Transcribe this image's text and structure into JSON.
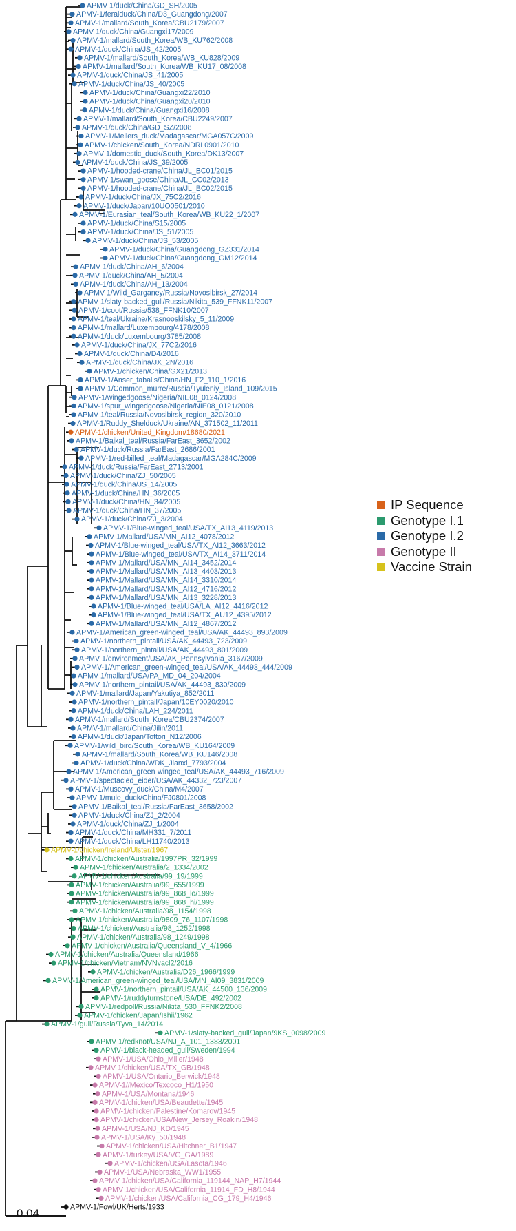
{
  "colors": {
    "ip": "#d8621a",
    "g11": "#2b9a6e",
    "g12": "#2a6aa8",
    "g2": "#c77aaa",
    "vac": "#d6c21c",
    "root": "#111111"
  },
  "legend": [
    {
      "label": "IP Sequence",
      "color": "#d8621a"
    },
    {
      "label": "Genotype I.1",
      "color": "#2b9a6e"
    },
    {
      "label": "Genotype I.2",
      "color": "#2a6aa8"
    },
    {
      "label": "Genotype II",
      "color": "#c77aaa"
    },
    {
      "label": "Vaccine Strain",
      "color": "#d6c21c"
    }
  ],
  "scale_label": "0.04",
  "taxa": [
    {
      "label": "APMV-1/duck/China/GD_SH/2005",
      "group": "g12"
    },
    {
      "label": "APMV-1/feralduck/China/D3_Guangdong/2007",
      "group": "g12"
    },
    {
      "label": "APMV-1/mallard/South_Korea/CBU2179/2007",
      "group": "g12"
    },
    {
      "label": "APMV-1/duck/China/Guangxi17/2009",
      "group": "g12"
    },
    {
      "label": "APMV-1/mallard/South_Korea/WB_KU762/2008",
      "group": "g12"
    },
    {
      "label": "APMV-1/duck/China/JS_42/2005",
      "group": "g12"
    },
    {
      "label": "APMV-1/mallard/South_Korea/WB_KU828/2009",
      "group": "g12"
    },
    {
      "label": "APMV-1/mallard/South_Korea/WB_KU17_08/2008",
      "group": "g12"
    },
    {
      "label": "APMV-1/duck/China/JS_41/2005",
      "group": "g12"
    },
    {
      "label": "APMV-1/duck/China/JS_40/2005",
      "group": "g12"
    },
    {
      "label": "APMV-1/duck/China/Guangxi22/2010",
      "group": "g12"
    },
    {
      "label": "APMV-1/duck/China/Guangxi20/2010",
      "group": "g12"
    },
    {
      "label": "APMV-1/duck/China/Guangxi16/2008",
      "group": "g12"
    },
    {
      "label": "APMV-1/mallard/South_Korea/CBU2249/2007",
      "group": "g12"
    },
    {
      "label": "APMV-1/duck/China/GD_SZ/2008",
      "group": "g12"
    },
    {
      "label": "APMV-1/Mellers_duck/Madagascar/MGA057C/2009",
      "group": "g12"
    },
    {
      "label": "APMV-1/chicken/South_Korea/NDRL0901/2010",
      "group": "g12"
    },
    {
      "label": "APMV-1/domestic_duck/South_Korea/DK13/2007",
      "group": "g12"
    },
    {
      "label": "APMV-1/duck/China/JS_39/2005",
      "group": "g12"
    },
    {
      "label": "APMV-1/hooded-crane/China/JL_BC01/2015",
      "group": "g12"
    },
    {
      "label": "APMV-1/swan_goose/China/JL_CC02/2013",
      "group": "g12"
    },
    {
      "label": "APMV-1/hooded-crane/China/JL_BC02/2015",
      "group": "g12"
    },
    {
      "label": "APMV-1/duck/China/JX_75C2/2016",
      "group": "g12"
    },
    {
      "label": "APMV-1/duck/Japan/10UO0501/2010",
      "group": "g12"
    },
    {
      "label": "APMV-1/Eurasian_teal/South_Korea/WB_KU22_1/2007",
      "group": "g12"
    },
    {
      "label": "APMV-1/duck/China/S15/2005",
      "group": "g12"
    },
    {
      "label": "APMV-1/duck/China/JS_51/2005",
      "group": "g12"
    },
    {
      "label": "APMV-1/duck/China/JS_53/2005",
      "group": "g12"
    },
    {
      "label": "APMV-1/duck/China/Guangdong_GZ331/2014",
      "group": "g12"
    },
    {
      "label": "APMV-1/duck/China/Guangdong_GM12/2014",
      "group": "g12"
    },
    {
      "label": "APMV-1/duck/China/AH_6/2004",
      "group": "g12"
    },
    {
      "label": "APMV-1/duck/China/AH_5/2004",
      "group": "g12"
    },
    {
      "label": "APMV-1/duck/China/AH_13/2004",
      "group": "g12"
    },
    {
      "label": "APMV-1/Wild_Garganey/Russia/Novosibirsk_27/2014",
      "group": "g12"
    },
    {
      "label": "APMV-1/slaty-backed_gull/Russia/Nikita_539_FFNK11/2007",
      "group": "g12"
    },
    {
      "label": "APMV-1/coot/Russia/538_FFNK10/2007",
      "group": "g12"
    },
    {
      "label": "APMV-1/teal/Ukraine/Krasnooskilsky_5_11/2009",
      "group": "g12"
    },
    {
      "label": "APMV-1/mallard/Luxembourg/4178/2008",
      "group": "g12"
    },
    {
      "label": "APMV-1/duck/Luxembourg/3785/2008",
      "group": "g12"
    },
    {
      "label": "APMV-1/duck/China/JX_77C2/2016",
      "group": "g12"
    },
    {
      "label": "APMV-1/duck/China/D4/2016",
      "group": "g12"
    },
    {
      "label": "APMV-1/duck/China/JX_2N/2016",
      "group": "g12"
    },
    {
      "label": "APMV-1/chicken/China/GX21/2013",
      "group": "g12"
    },
    {
      "label": "APMV-1/Anser_fabalis/China/HN_F2_110_1/2016",
      "group": "g12"
    },
    {
      "label": "APMV-1/Common_murre/Russia/Tyuleniy_Island_109/2015",
      "group": "g12"
    },
    {
      "label": "APMV-1/wingedgoose/Nigeria/NIE08_0124/2008",
      "group": "g12"
    },
    {
      "label": "APMV-1/spur_wingedgoose/Nigeria/NIE08_0121/2008",
      "group": "g12"
    },
    {
      "label": "APMV-1/teal/Russia/Novosibirsk_region_320/2010",
      "group": "g12"
    },
    {
      "label": "APMV-1/Ruddy_Shelduck/Ukraine/AN_371502_11/2011",
      "group": "g12"
    },
    {
      "label": "APMV-1/chicken/United_Kingdom/18680/2021",
      "group": "ip"
    },
    {
      "label": "APMV-1/Baikal_teal/Russia/FarEast_3652/2002",
      "group": "g12"
    },
    {
      "label": "APMV-1/duck/Russia/FarEast_2686/2001",
      "group": "g12"
    },
    {
      "label": "APMV-1/red-billed_teal/Madagascar/MGA284C/2009",
      "group": "g12"
    },
    {
      "label": "APMV-1/duck/Russia/FarEast_2713/2001",
      "group": "g12"
    },
    {
      "label": "APMV-1/duck/China/ZJ_50/2005",
      "group": "g12"
    },
    {
      "label": "APMV-1/duck/China/JS_14/2005",
      "group": "g12"
    },
    {
      "label": "APMV-1/duck/China/HN_36/2005",
      "group": "g12"
    },
    {
      "label": "APMV-1/duck/China/HN_34/2005",
      "group": "g12"
    },
    {
      "label": "APMV-1/duck/China/HN_37/2005",
      "group": "g12"
    },
    {
      "label": "APMV-1/duck/China/ZJ_3/2004",
      "group": "g12"
    },
    {
      "label": "APMV-1/Blue-winged_teal/USA/TX_AI13_4119/2013",
      "group": "g12"
    },
    {
      "label": "APMV-1/Mallard/USA/MN_AI12_4078/2012",
      "group": "g12"
    },
    {
      "label": "APMV-1/Blue-winged_teal/USA/TX_AI12_3663/2012",
      "group": "g12"
    },
    {
      "label": "APMV-1/Blue-winged_teal/USA/TX_AI14_3711/2014",
      "group": "g12"
    },
    {
      "label": "APMV-1/Mallard/USA/MN_AI14_3452/2014",
      "group": "g12"
    },
    {
      "label": "APMV-1/Mallard/USA/MN_AI13_4403/2013",
      "group": "g12"
    },
    {
      "label": "APMV-1/Mallard/USA/MN_AI14_3310/2014",
      "group": "g12"
    },
    {
      "label": "APMV-1/Mallard/USA/MN_AI12_4716/2012",
      "group": "g12"
    },
    {
      "label": "APMV-1/Mallard/USA/MN_AI13_3228/2013",
      "group": "g12"
    },
    {
      "label": "APMV-1/Blue-winged_teal/USA/LA_AI12_4416/2012",
      "group": "g12"
    },
    {
      "label": "APMV-1/Blue-winged_teal/USA/TX_AU12_4395/2012",
      "group": "g12"
    },
    {
      "label": "APMV-1/Mallard/USA/MN_AI12_4867/2012",
      "group": "g12"
    },
    {
      "label": "APMV-1/American_green-winged_teal/USA/AK_44493_893/2009",
      "group": "g12"
    },
    {
      "label": "APMV-1/northern_pintail/USA/AK_44493_723/2009",
      "group": "g12"
    },
    {
      "label": "APMV-1/northern_pintail/USA/AK_44493_801/2009",
      "group": "g12"
    },
    {
      "label": "APMV-1/environment/USA/AK_Pennsylvania_3167/2009",
      "group": "g12"
    },
    {
      "label": "APMV-1/American_green-winged_teal/USA/AK_44493_444/2009",
      "group": "g12"
    },
    {
      "label": "APMV-1/mallard/USA/PA_MD_04_204/2004",
      "group": "g12"
    },
    {
      "label": "APMV-1/northern_pintail/USA/AK_44493_830/2009",
      "group": "g12"
    },
    {
      "label": "APMV-1/mallard/Japan/Yakutiya_852/2011",
      "group": "g12"
    },
    {
      "label": "APMV-1/northern_pintail/Japan/10EY0020/2010",
      "group": "g12"
    },
    {
      "label": "APMV-1/duck/China/LAH_224/2011",
      "group": "g12"
    },
    {
      "label": "APMV-1/mallard/South_Korea/CBU2374/2007",
      "group": "g12"
    },
    {
      "label": "APMV-1/mallard/China/Jilin/2011",
      "group": "g12"
    },
    {
      "label": "APMV-1/duck/Japan/Tottori_N12/2006",
      "group": "g12"
    },
    {
      "label": "APMV-1/wild_bird/South_Korea/WB_KU164/2009",
      "group": "g12"
    },
    {
      "label": "APMV-1/mallard/South_Korea/WB_KU146/2008",
      "group": "g12"
    },
    {
      "label": "APMV-1/duck/China/WDK_Jianxi_7793/2004",
      "group": "g12"
    },
    {
      "label": "APMV-1/American_green-winged_teal/USA/AK_44493_716/2009",
      "group": "g12"
    },
    {
      "label": "APMV-1/spectacled_eider/USA/AK_44332_723/2007",
      "group": "g12"
    },
    {
      "label": "APMV-1/Muscovy_duck/China/M4/2007",
      "group": "g12"
    },
    {
      "label": "APMV-1/mule_duck/China/FJ0801/2008",
      "group": "g12"
    },
    {
      "label": "APMV-1/Baikal_teal/Russia/FarEast_3658/2002",
      "group": "g12"
    },
    {
      "label": "APMV-1/duck/China/ZJ_2/2004",
      "group": "g12"
    },
    {
      "label": "APMV-1/duck/China/ZJ_1/2004",
      "group": "g12"
    },
    {
      "label": "APMV-1/duck/China/MH331_7/2011",
      "group": "g12"
    },
    {
      "label": "APMV-1/duck/China/LH11740/2013",
      "group": "g12"
    },
    {
      "label": "APMV-1/chicken/Ireland/Ulster/1967",
      "group": "vac"
    },
    {
      "label": "APMV-1/chicken/Australia/1997PR_32/1999",
      "group": "g11"
    },
    {
      "label": "APMV-1/chicken/Australia/2_1334/2002",
      "group": "g11"
    },
    {
      "label": "APMV-1/chicken/Australia/99_19/1999",
      "group": "g11"
    },
    {
      "label": "APMV-1/chicken/Australia/99_655/1999",
      "group": "g11"
    },
    {
      "label": "APMV-1/chicken/Australia/99_868_lo/1999",
      "group": "g11"
    },
    {
      "label": "APMV-1/chicken/Australia/99_868_hi/1999",
      "group": "g11"
    },
    {
      "label": "APMV-1/chicken/Australia/98_1154/1998",
      "group": "g11"
    },
    {
      "label": "APMV-1/chicken/Australia/9809_76_1107/1998",
      "group": "g11"
    },
    {
      "label": "APMV-1/chicken/Australia/98_1252/1998",
      "group": "g11"
    },
    {
      "label": "APMV-1/chicken/Australia/98_1249/1998",
      "group": "g11"
    },
    {
      "label": "APMV-1/chicken/Australia/Queensland_V_4/1966",
      "group": "g11"
    },
    {
      "label": "APMV-1/chicken/Australia/Queensland/1966",
      "group": "g11"
    },
    {
      "label": "APMV-1/chicken/Vietnam/NVNvacl2/2016",
      "group": "g11"
    },
    {
      "label": "APMV-1/chicken/Australia/D26_1966/1999",
      "group": "g11"
    },
    {
      "label": "APMV-1/American_green-winged_teal/USA/MN_AI09_3831/2009",
      "group": "g11"
    },
    {
      "label": "APMV-1/northern_pintail/USA/AK_44500_136/2009",
      "group": "g11"
    },
    {
      "label": "APMV-1/ruddyturnstone/USA/DE_492/2002",
      "group": "g11"
    },
    {
      "label": "APMV-1/redpoll/Russia/Nikita_530_FFNK2/2008",
      "group": "g11"
    },
    {
      "label": "APMV-1/chicken/Japan/Ishii/1962",
      "group": "g11"
    },
    {
      "label": "APMV-1/gull/Russia/Tyva_14/2014",
      "group": "g11"
    },
    {
      "label": "APMV-1/slaty-backed_gull/Japan/9KS_0098/2009",
      "group": "g11"
    },
    {
      "label": "APMV-1/redknot/USA/NJ_A_101_1383/2001",
      "group": "g11"
    },
    {
      "label": "APMV-1/black-headed_gull/Sweden/1994",
      "group": "g11"
    },
    {
      "label": "APMV-1/USA/Ohio_Miller/1948",
      "group": "g2"
    },
    {
      "label": "APMV-1/chicken/USA/TX_GB/1948",
      "group": "g2"
    },
    {
      "label": "APMV-1/USA/Ontario_Berwick/1948",
      "group": "g2"
    },
    {
      "label": "APMV-1//Mexico/Texcoco_H1/1950",
      "group": "g2"
    },
    {
      "label": "APMV-1/USA/Montana/1946",
      "group": "g2"
    },
    {
      "label": "APMV-1/chicken/USA/Beaudette/1945",
      "group": "g2"
    },
    {
      "label": "APMV-1/chicken/Palestine/Komarov/1945",
      "group": "g2"
    },
    {
      "label": "APMV-1/chicken/USA/New_Jersey_Roakin/1948",
      "group": "g2"
    },
    {
      "label": "APMV-1/USA/NJ_KD/1945",
      "group": "g2"
    },
    {
      "label": "APMV-1/USA/Ky_50/1948",
      "group": "g2"
    },
    {
      "label": "APMV-1/chicken/USA/Hitchner_B1/1947",
      "group": "g2"
    },
    {
      "label": "APMV-1/turkey/USA/VG_GA/1989",
      "group": "g2"
    },
    {
      "label": "APMV-1/chicken/USA/Lasota/1946",
      "group": "g2"
    },
    {
      "label": "APMV-1/USA/Nebraska_WW1/1955",
      "group": "g2"
    },
    {
      "label": "APMV-1/chicken/USA/California_119144_NAP_H7/1944",
      "group": "g2"
    },
    {
      "label": "APMV-1/chicken/USA/California_11914_FD_H8/1944",
      "group": "g2"
    },
    {
      "label": "APMV-1/chicken/USA/California_CG_179_H4/1946",
      "group": "g2"
    },
    {
      "label": "APMV-1/Fowl/UK/Herts/1933",
      "group": "root"
    }
  ]
}
